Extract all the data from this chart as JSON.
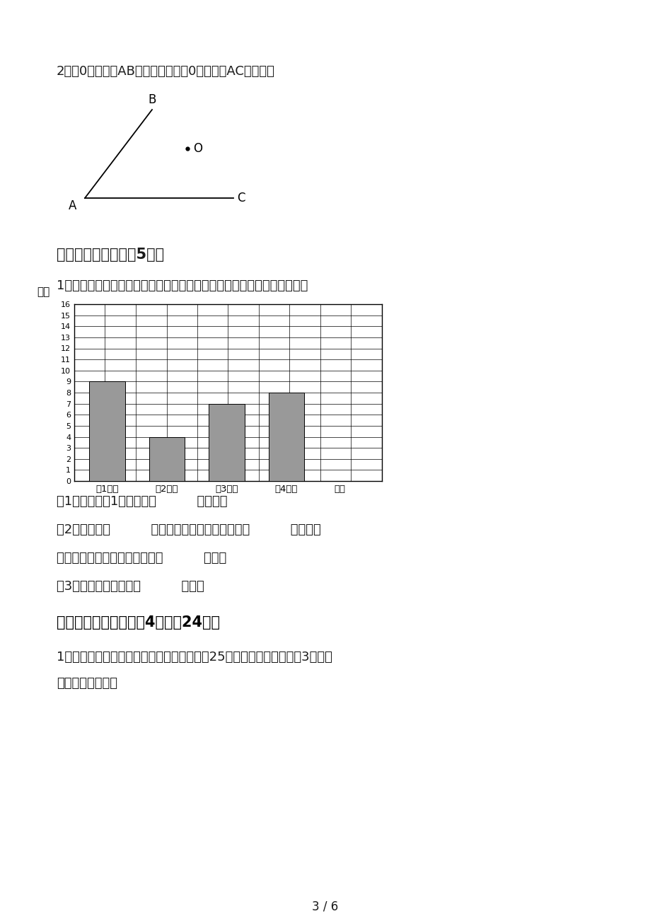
{
  "page_bg": "#ffffff",
  "top_text": "2、过0点画射线AB的平行线；再过0点画射线AC的垂线。",
  "section6_title": "六、统计图表。（八5分）",
  "chart_intro": "1、下面是某学校四年级的植树情况统计图，根据统计图回答下面的问题。",
  "bar_ylabel": "棵树",
  "bar_categories": [
    "（1）班",
    "（2）班",
    "（3）班",
    "（4）班",
    "班级"
  ],
  "bar_values": [
    9,
    4,
    7,
    8
  ],
  "bar_color": "#999999",
  "bar_ylim": [
    0,
    16
  ],
  "bar_yticks": [
    0,
    1,
    2,
    3,
    4,
    5,
    6,
    7,
    8,
    9,
    10,
    11,
    12,
    13,
    14,
    15,
    16
  ],
  "q1": "（1）统计图中1小格代表（          ）棵树。",
  "q2": "（2）四年级（          ）班的同学植树最多，达到（          ）棵；（",
  "q2b": "）班的同学植树最少，只植了（          ）棵。",
  "q3": "（3）每个班平均植树（          ）棵。",
  "section7_title": "七、解决问题。（每题4分，全24分）",
  "prob1": "1、幸福小学四年级垃圾分类宣传志愿者共有25人，其中男生比女生多3人，男",
  "prob1b": "、女生各多少人？",
  "footer": "3 / 6"
}
